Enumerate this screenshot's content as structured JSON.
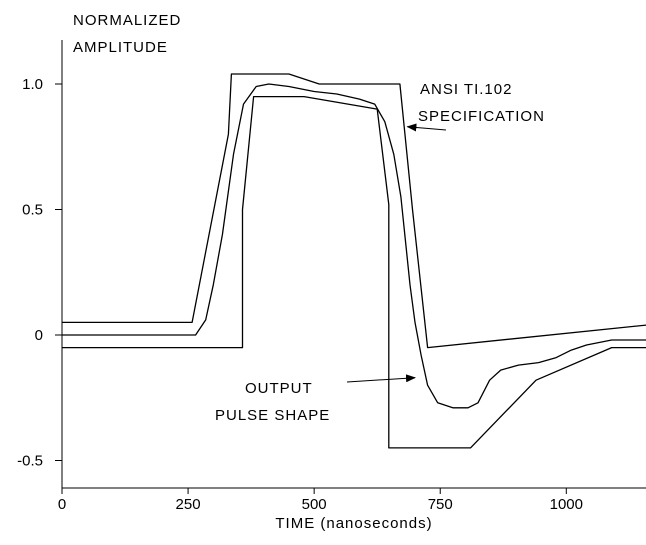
{
  "chart_data": {
    "type": "line",
    "ylabel_lines": [
      "NORMALIZED",
      "AMPLITUDE"
    ],
    "xlabel": "TIME  (nanoseconds)",
    "xlim": [
      0,
      1160
    ],
    "ylim": [
      -0.58,
      1.18
    ],
    "x_ticks": [
      {
        "value": 0,
        "label": "0"
      },
      {
        "value": 250,
        "label": "250"
      },
      {
        "value": 500,
        "label": "500"
      },
      {
        "value": 750,
        "label": "750"
      },
      {
        "value": 1000,
        "label": "1000"
      }
    ],
    "y_ticks": [
      {
        "value": 1.0,
        "label": "1.0"
      },
      {
        "value": 0.5,
        "label": "0.5"
      },
      {
        "value": 0,
        "label": "0"
      },
      {
        "value": -0.5,
        "label": "-0.5"
      }
    ],
    "series": [
      {
        "role": "spec-upper",
        "points": [
          [
            0,
            0.05
          ],
          [
            258,
            0.05
          ],
          [
            330,
            0.8
          ],
          [
            336,
            1.04
          ],
          [
            450,
            1.04
          ],
          [
            510,
            1.0
          ],
          [
            670,
            1.0
          ],
          [
            695,
            0.5
          ],
          [
            725,
            -0.05
          ],
          [
            1160,
            0.04
          ]
        ]
      },
      {
        "role": "spec-lower",
        "points": [
          [
            0,
            -0.05
          ],
          [
            358,
            -0.05
          ],
          [
            358,
            0.5
          ],
          [
            380,
            0.95
          ],
          [
            480,
            0.95
          ],
          [
            625,
            0.9
          ],
          [
            648,
            0.52
          ],
          [
            648,
            -0.45
          ],
          [
            810,
            -0.45
          ],
          [
            940,
            -0.18
          ],
          [
            1090,
            -0.05
          ],
          [
            1160,
            -0.05
          ]
        ]
      },
      {
        "role": "output-pulse",
        "points": [
          [
            0,
            0
          ],
          [
            265,
            0
          ],
          [
            285,
            0.06
          ],
          [
            300,
            0.2
          ],
          [
            318,
            0.4
          ],
          [
            340,
            0.72
          ],
          [
            360,
            0.92
          ],
          [
            385,
            0.99
          ],
          [
            410,
            1.0
          ],
          [
            450,
            0.99
          ],
          [
            500,
            0.97
          ],
          [
            545,
            0.96
          ],
          [
            590,
            0.94
          ],
          [
            620,
            0.92
          ],
          [
            640,
            0.85
          ],
          [
            658,
            0.72
          ],
          [
            672,
            0.55
          ],
          [
            690,
            0.2
          ],
          [
            700,
            0.05
          ],
          [
            712,
            -0.08
          ],
          [
            725,
            -0.2
          ],
          [
            745,
            -0.27
          ],
          [
            775,
            -0.29
          ],
          [
            805,
            -0.29
          ],
          [
            825,
            -0.27
          ],
          [
            848,
            -0.18
          ],
          [
            870,
            -0.14
          ],
          [
            905,
            -0.12
          ],
          [
            945,
            -0.11
          ],
          [
            980,
            -0.09
          ],
          [
            1010,
            -0.06
          ],
          [
            1040,
            -0.04
          ],
          [
            1090,
            -0.02
          ],
          [
            1160,
            -0.02
          ]
        ]
      }
    ],
    "annotations": [
      {
        "id": "spec",
        "lines": [
          "ANSI TI.102",
          "SPECIFICATION"
        ],
        "arrow_to": [
          685,
          0.83
        ]
      },
      {
        "id": "pulse",
        "lines": [
          "OUTPUT",
          "PULSE SHAPE"
        ],
        "arrow_to": [
          700,
          -0.17
        ]
      }
    ]
  }
}
